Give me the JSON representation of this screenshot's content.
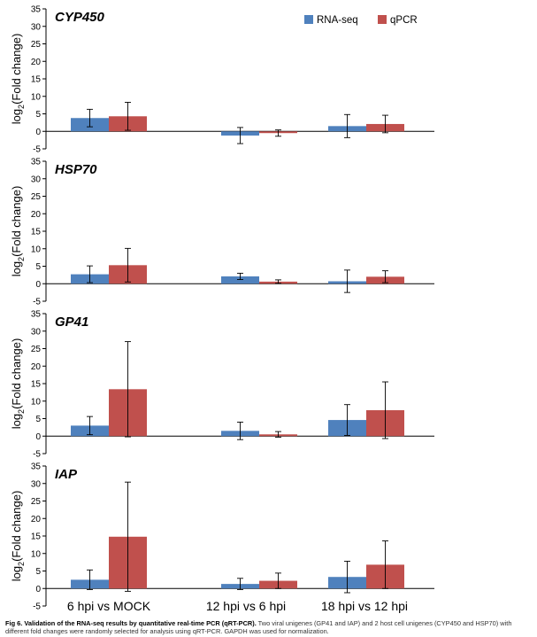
{
  "chart_data": [
    {
      "type": "bar",
      "title": "CYP450",
      "ylabel": "log2(Fold change)",
      "ylim": [
        -5,
        35
      ],
      "yticks": [
        -5,
        0,
        5,
        10,
        15,
        20,
        25,
        30,
        35
      ],
      "categories": [
        "6 hpi vs MOCK",
        "12 hpi vs 6 hpi",
        "18 hpi vs 12 hpi"
      ],
      "series": [
        {
          "name": "RNA-seq",
          "values": [
            3.8,
            -1.2,
            1.5
          ],
          "errors": [
            2.5,
            2.3,
            3.3
          ]
        },
        {
          "name": "qPCR",
          "values": [
            4.3,
            -0.5,
            2.1
          ],
          "errors": [
            4.0,
            0.9,
            2.5
          ]
        }
      ],
      "legend_position": "top-right"
    },
    {
      "type": "bar",
      "title": "HSP70",
      "ylabel": "log2(Fold change)",
      "ylim": [
        -5,
        35
      ],
      "yticks": [
        -5,
        0,
        5,
        10,
        15,
        20,
        25,
        30,
        35
      ],
      "categories": [
        "6 hpi vs MOCK",
        "12 hpi vs 6 hpi",
        "18 hpi vs 12 hpi"
      ],
      "series": [
        {
          "name": "RNA-seq",
          "values": [
            2.7,
            2.1,
            0.7
          ],
          "errors": [
            2.4,
            0.9,
            3.2
          ]
        },
        {
          "name": "qPCR",
          "values": [
            5.3,
            0.6,
            2.0
          ],
          "errors": [
            4.8,
            0.5,
            1.7
          ]
        }
      ]
    },
    {
      "type": "bar",
      "title": "GP41",
      "ylabel": "log2(Fold change)",
      "ylim": [
        -5,
        35
      ],
      "yticks": [
        -5,
        0,
        5,
        10,
        15,
        20,
        25,
        30,
        35
      ],
      "categories": [
        "6 hpi vs MOCK",
        "12 hpi vs 6 hpi",
        "18 hpi vs 12 hpi"
      ],
      "series": [
        {
          "name": "RNA-seq",
          "values": [
            3.0,
            1.5,
            4.6
          ],
          "errors": [
            2.6,
            2.5,
            4.4
          ]
        },
        {
          "name": "qPCR",
          "values": [
            13.4,
            0.5,
            7.4
          ],
          "errors": [
            13.6,
            0.8,
            8.1
          ]
        }
      ]
    },
    {
      "type": "bar",
      "title": "IAP",
      "ylabel": "log2(Fold change)",
      "ylim": [
        -5,
        35
      ],
      "yticks": [
        -5,
        0,
        5,
        10,
        15,
        20,
        25,
        30,
        35
      ],
      "categories": [
        "6 hpi vs MOCK",
        "12 hpi vs 6 hpi",
        "18 hpi vs 12 hpi"
      ],
      "series": [
        {
          "name": "RNA-seq",
          "values": [
            2.5,
            1.3,
            3.3
          ],
          "errors": [
            2.8,
            1.6,
            4.5
          ]
        },
        {
          "name": "qPCR",
          "values": [
            14.8,
            2.2,
            6.8
          ],
          "errors": [
            15.6,
            2.2,
            6.8
          ]
        }
      ]
    }
  ],
  "colors": {
    "rnaseq": "#4F81BD",
    "qpcr": "#C0504D"
  },
  "caption": {
    "bold": "Fig 6. Validation of the RNA-seq results by quantitative real-time PCR (qRT-PCR).",
    "text": " Two viral unigenes (GP41 and IAP) and 2 host cell unigenes (CYP450 and HSP70) with different fold changes were randomly selected for analysis using qRT-PCR. GAPDH was used for normalization."
  }
}
